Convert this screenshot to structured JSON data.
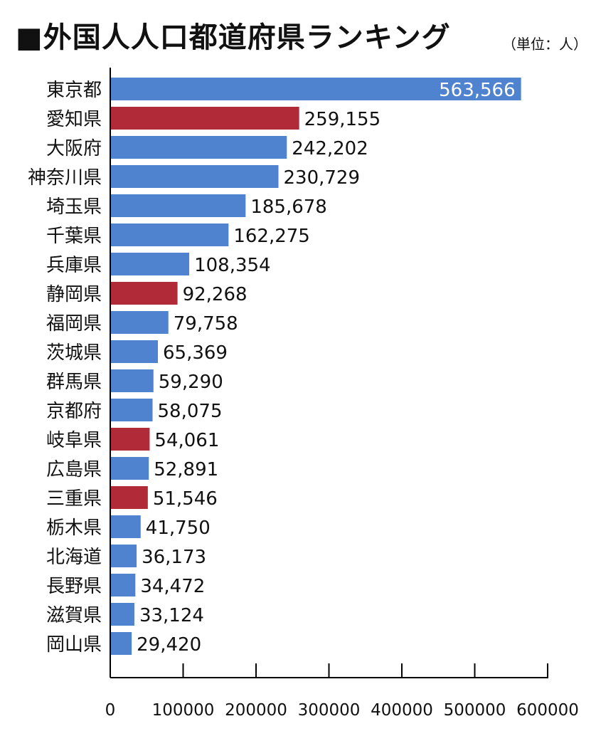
{
  "title": "■外国人人口都道府県ランキング",
  "unit": "（単位：人）",
  "colors": {
    "default": "#4f82cf",
    "highlight": "#b02a37"
  },
  "chart_data": {
    "type": "bar",
    "orientation": "horizontal",
    "title": "■外国人人口都道府県ランキング",
    "unit": "（単位：人）",
    "xlim": [
      0,
      600000
    ],
    "x_ticks": [
      "0",
      "100000",
      "200000",
      "300000",
      "400000",
      "500000",
      "600000"
    ],
    "grid": false,
    "legend": "none",
    "categories": [
      "東京都",
      "愛知県",
      "大阪府",
      "神奈川県",
      "埼玉県",
      "千葉県",
      "兵庫県",
      "静岡県",
      "福岡県",
      "茨城県",
      "群馬県",
      "京都府",
      "岐阜県",
      "広島県",
      "三重県",
      "栃木県",
      "北海道",
      "長野県",
      "滋賀県",
      "岡山県"
    ],
    "values": [
      563566,
      259155,
      242202,
      230729,
      185678,
      162275,
      108354,
      92268,
      79758,
      65369,
      59290,
      58075,
      54061,
      52891,
      51546,
      41750,
      36173,
      34472,
      33124,
      29420
    ],
    "value_labels": [
      "563,566",
      "259,155",
      "242,202",
      "230,729",
      "185,678",
      "162,275",
      "108,354",
      "92,268",
      "79,758",
      "65,369",
      "59,290",
      "58,075",
      "54,061",
      "52,891",
      "51,546",
      "41,750",
      "36,173",
      "34,472",
      "33,124",
      "29,420"
    ],
    "highlighted": [
      "愛知県",
      "静岡県",
      "岐阜県",
      "三重県"
    ]
  }
}
